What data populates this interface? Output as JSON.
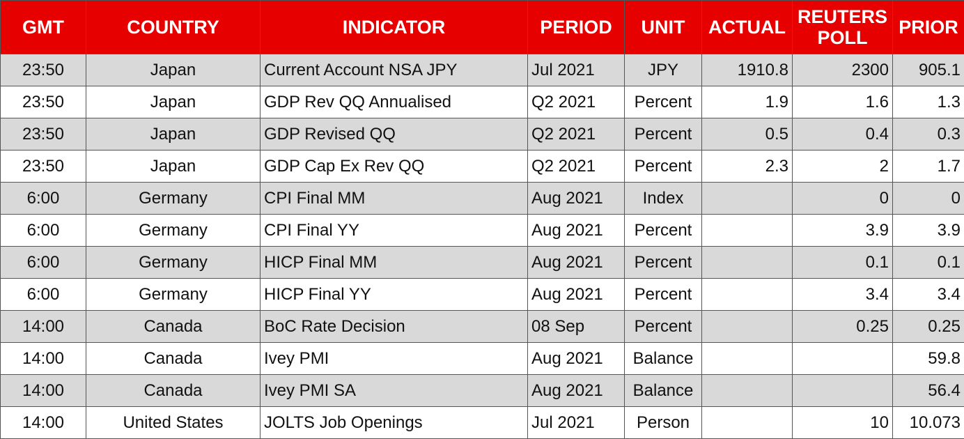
{
  "table": {
    "header": [
      "GMT",
      "COUNTRY",
      "INDICATOR",
      "PERIOD",
      "UNIT",
      "ACTUAL",
      "REUTERS POLL",
      "PRIOR"
    ],
    "rows": [
      [
        "23:50",
        "Japan",
        "Current Account NSA JPY",
        "Jul 2021",
        "JPY",
        "1910.8",
        "2300",
        "905.1"
      ],
      [
        "23:50",
        "Japan",
        "GDP Rev QQ Annualised",
        "Q2 2021",
        "Percent",
        "1.9",
        "1.6",
        "1.3"
      ],
      [
        "23:50",
        "Japan",
        "GDP Revised QQ",
        "Q2 2021",
        "Percent",
        "0.5",
        "0.4",
        "0.3"
      ],
      [
        "23:50",
        "Japan",
        "GDP Cap Ex Rev QQ",
        "Q2 2021",
        "Percent",
        "2.3",
        "2",
        "1.7"
      ],
      [
        "6:00",
        "Germany",
        "CPI Final MM",
        "Aug 2021",
        "Index",
        null,
        "0",
        "0"
      ],
      [
        "6:00",
        "Germany",
        "CPI Final YY",
        "Aug 2021",
        "Percent",
        null,
        "3.9",
        "3.9"
      ],
      [
        "6:00",
        "Germany",
        "HICP Final MM",
        "Aug 2021",
        "Percent",
        null,
        "0.1",
        "0.1"
      ],
      [
        "6:00",
        "Germany",
        "HICP Final YY",
        "Aug 2021",
        "Percent",
        null,
        "3.4",
        "3.4"
      ],
      [
        "14:00",
        "Canada",
        "BoC Rate Decision",
        "08 Sep",
        "Percent",
        null,
        "0.25",
        "0.25"
      ],
      [
        "14:00",
        "Canada",
        "Ivey PMI",
        "Aug 2021",
        "Balance",
        null,
        null,
        "59.8"
      ],
      [
        "14:00",
        "Canada",
        "Ivey PMI SA",
        "Aug 2021",
        "Balance",
        null,
        null,
        "56.4"
      ],
      [
        "14:00",
        "United States",
        "JOLTS Job Openings",
        "Jul 2021",
        "Person",
        null,
        "10",
        "10.073"
      ]
    ]
  }
}
